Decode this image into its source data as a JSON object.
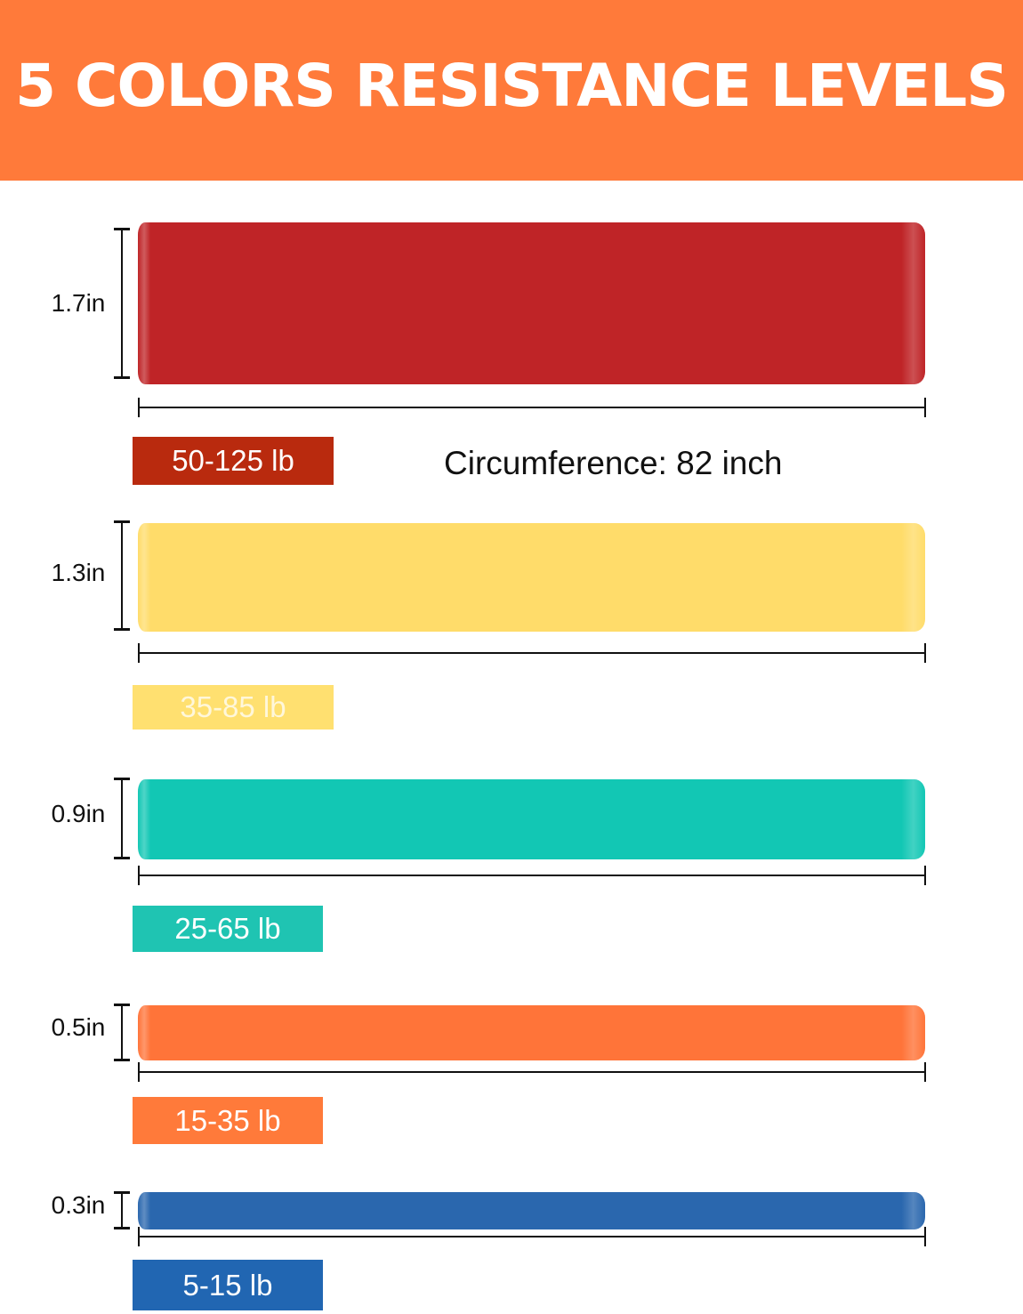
{
  "header": {
    "title": "5 COLORS RESISTANCE LEVELS",
    "background": "#FF7A3A"
  },
  "circumference": "Circumference: 82 inch",
  "bands": [
    {
      "width": "1.7in",
      "resistance": "50-125 lb",
      "band_color": "#BF2427",
      "badge_color": "#B92A0E",
      "text_color": "#FFFFFF"
    },
    {
      "width": "1.3in",
      "resistance": "35-85 lb",
      "band_color": "#FFDC6A",
      "badge_color": "#FFE070",
      "text_color": "#FFF7DA"
    },
    {
      "width": "0.9in",
      "resistance": "25-65 lb",
      "band_color": "#12C7B4",
      "badge_color": "#1FC4B2",
      "text_color": "#FFFFFF"
    },
    {
      "width": "0.5in",
      "resistance": "15-35 lb",
      "band_color": "#FF7439",
      "badge_color": "#FF7A3A",
      "text_color": "#FFFFFF"
    },
    {
      "width": "0.3in",
      "resistance": "5-15 lb",
      "band_color": "#2A67AE",
      "badge_color": "#2166B2",
      "text_color": "#FFFFFF"
    }
  ]
}
